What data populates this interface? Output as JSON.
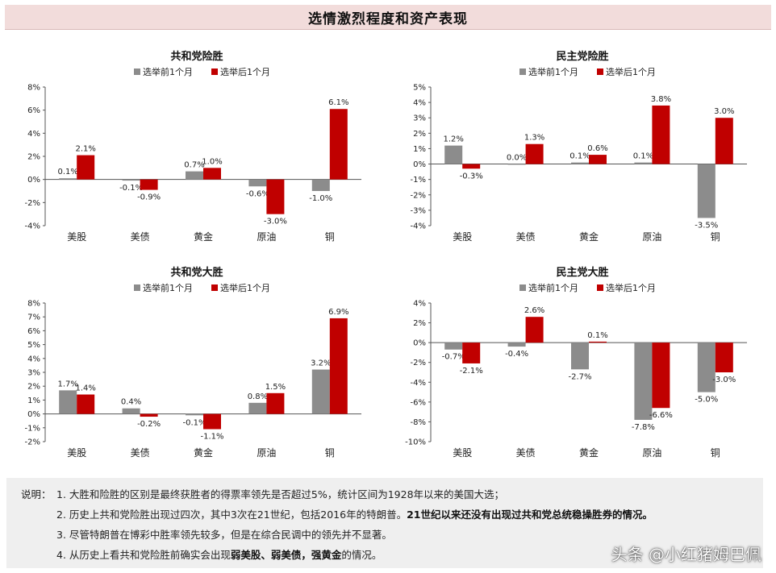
{
  "header": {
    "title": "选情激烈程度和资产表现"
  },
  "colors": {
    "before": "#8c8c8c",
    "after": "#c00000",
    "header_bg": "#f2dcdb"
  },
  "chart_data": [
    {
      "type": "bar",
      "title": "共和党险胜",
      "legend": [
        "选举前1个月",
        "选举后1个月"
      ],
      "categories": [
        "美股",
        "美债",
        "黄金",
        "原油",
        "铜"
      ],
      "series": [
        {
          "name": "选举前1个月",
          "values": [
            0.1,
            -0.1,
            0.7,
            -0.6,
            -1.0
          ],
          "labels": [
            "0.1%",
            "-0.1%",
            "0.7%",
            "-0.6%",
            "-1.0%"
          ]
        },
        {
          "name": "选举后1个月",
          "values": [
            2.1,
            -0.9,
            1.0,
            -3.0,
            6.1
          ],
          "labels": [
            "2.1%",
            "-0.9%",
            "1.0%",
            "-3.0%",
            "6.1%"
          ]
        }
      ],
      "yticks": [
        -4,
        -2,
        0,
        2,
        4,
        6,
        8
      ],
      "ylim": [
        -4,
        8
      ],
      "ytick_labels": [
        "-4%",
        "-2%",
        "0%",
        "2%",
        "4%",
        "6%",
        "8%"
      ]
    },
    {
      "type": "bar",
      "title": "民主党险胜",
      "legend": [
        "选举前1个月",
        "选举后1个月"
      ],
      "categories": [
        "美股",
        "美债",
        "黄金",
        "原油",
        "铜"
      ],
      "series": [
        {
          "name": "选举前1个月",
          "values": [
            1.2,
            0.0,
            0.1,
            0.1,
            -3.5
          ],
          "labels": [
            "1.2%",
            "0.0%",
            "0.1%",
            "0.1%",
            "-3.5%"
          ]
        },
        {
          "name": "选举后1个月",
          "values": [
            -0.3,
            1.3,
            0.6,
            3.8,
            3.0
          ],
          "labels": [
            "-0.3%",
            "1.3%",
            "0.6%",
            "3.8%",
            "3.0%"
          ]
        }
      ],
      "yticks": [
        -4,
        -3,
        -2,
        -1,
        0,
        1,
        2,
        3,
        4,
        5
      ],
      "ylim": [
        -4,
        5
      ],
      "ytick_labels": [
        "-4%",
        "-3%",
        "-2%",
        "-1%",
        "0%",
        "1%",
        "2%",
        "3%",
        "4%",
        "5%"
      ]
    },
    {
      "type": "bar",
      "title": "共和党大胜",
      "legend": [
        "选举前1个月",
        "选举后1个月"
      ],
      "categories": [
        "美股",
        "美债",
        "黄金",
        "原油",
        "铜"
      ],
      "series": [
        {
          "name": "选举前1个月",
          "values": [
            1.7,
            0.4,
            -0.1,
            0.8,
            3.2
          ],
          "labels": [
            "1.7%",
            "0.4%",
            "-0.1%",
            "0.8%",
            "3.2%"
          ]
        },
        {
          "name": "选举后1个月",
          "values": [
            1.4,
            -0.2,
            -1.1,
            1.5,
            6.9
          ],
          "labels": [
            "1.4%",
            "-0.2%",
            "-1.1%",
            "1.5%",
            "6.9%"
          ]
        }
      ],
      "yticks": [
        -2,
        -1,
        0,
        1,
        2,
        3,
        4,
        5,
        6,
        7,
        8
      ],
      "ylim": [
        -2,
        8
      ],
      "ytick_labels": [
        "-2%",
        "-1%",
        "0%",
        "1%",
        "2%",
        "3%",
        "4%",
        "5%",
        "6%",
        "7%",
        "8%"
      ]
    },
    {
      "type": "bar",
      "title": "民主党大胜",
      "legend": [
        "选举前1个月",
        "选举后1个月"
      ],
      "categories": [
        "美股",
        "美债",
        "黄金",
        "原油",
        "铜"
      ],
      "series": [
        {
          "name": "选举前1个月",
          "values": [
            -0.7,
            -0.4,
            -2.7,
            -7.8,
            -5.0
          ],
          "labels": [
            "-0.7%",
            "-0.4%",
            "-2.7%",
            "-7.8%",
            "-5.0%"
          ]
        },
        {
          "name": "选举后1个月",
          "values": [
            -2.1,
            2.6,
            0.1,
            -6.6,
            -3.0
          ],
          "labels": [
            "-2.1%",
            "2.6%",
            "0.1%",
            "-6.6%",
            "-3.0%"
          ]
        }
      ],
      "yticks": [
        -10,
        -8,
        -6,
        -4,
        -2,
        0,
        2,
        4
      ],
      "ylim": [
        -10,
        4
      ],
      "ytick_labels": [
        "-10%",
        "-8%",
        "-6%",
        "-4%",
        "-2%",
        "0%",
        "2%",
        "4%"
      ]
    }
  ],
  "notes": {
    "prefix": "说明：",
    "lines": [
      {
        "text": "1. 大胜和险胜的区别是最终获胜者的得票率领先是否超过5%，统计区间为1928年以来的美国大选；",
        "bold": ""
      },
      {
        "text": "2. 历史上共和党险胜出现过四次，其中3次在21世纪，包括2016年的特朗普。",
        "bold": "21世纪以来还没有出现过共和党总统稳操胜券的情况。"
      },
      {
        "text": "3. 尽管特朗普在博彩中胜率领先较多，但是在综合民调中的领先并不显著。",
        "bold": ""
      },
      {
        "text": "4. 从历史上看共和党险胜前确实会出现",
        "bold": "弱美股、弱美债，强黄金",
        "tail": "的情况。"
      }
    ]
  },
  "watermark": "头条 @小红猪姆巴佩"
}
